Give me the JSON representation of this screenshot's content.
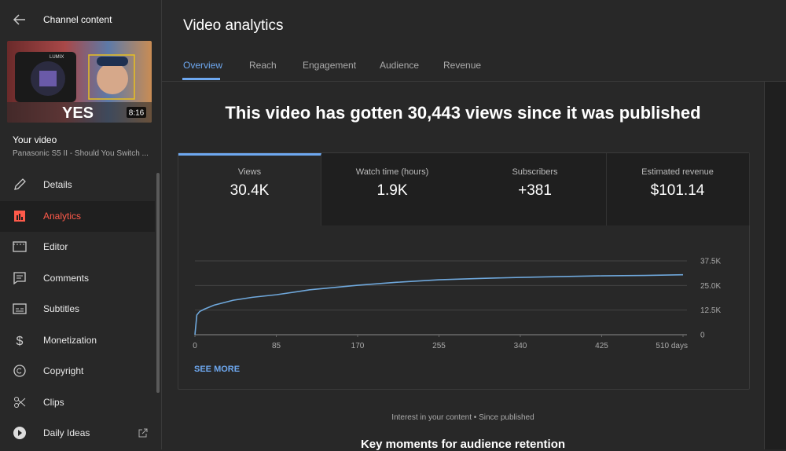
{
  "sidebar": {
    "back_title": "Channel content",
    "thumbnail_brand": "LUMIX",
    "thumbnail_text": "YES",
    "thumbnail_duration": "8:16",
    "your_video": "Your video",
    "video_title": "Panasonic S5 II - Should You Switch ...",
    "nav": [
      "Details",
      "Analytics",
      "Editor",
      "Comments",
      "Subtitles",
      "Monetization",
      "Copyright",
      "Clips",
      "Daily Ideas"
    ]
  },
  "header": {
    "title": "Video analytics",
    "tabs": [
      "Overview",
      "Reach",
      "Engagement",
      "Audience",
      "Revenue"
    ]
  },
  "headline": "This video has gotten 30,443 views since it was published",
  "metrics": [
    {
      "label": "Views",
      "value": "30.4K"
    },
    {
      "label": "Watch time (hours)",
      "value": "1.9K"
    },
    {
      "label": "Subscribers",
      "value": "+381"
    },
    {
      "label": "Estimated revenue",
      "value": "$101.14"
    }
  ],
  "chart_data": {
    "type": "line",
    "color": "#6fa8dc",
    "grid": true,
    "x": [
      0,
      2,
      5,
      10,
      20,
      40,
      60,
      85,
      120,
      170,
      210,
      255,
      300,
      340,
      380,
      425,
      470,
      510
    ],
    "values": [
      0,
      10000,
      11800,
      13000,
      15000,
      17500,
      19000,
      20300,
      22800,
      25100,
      26600,
      27900,
      28600,
      29100,
      29500,
      29900,
      30100,
      30443
    ],
    "xlim": [
      0,
      510
    ],
    "ylim": [
      0,
      37500
    ],
    "xticks": [
      0,
      85,
      170,
      255,
      340,
      425,
      {
        "value": 510,
        "label": "510 days"
      }
    ],
    "yticks": [
      0,
      {
        "value": 12500,
        "label": "12.5K"
      },
      {
        "value": 25000,
        "label": "25.0K"
      },
      {
        "value": 37500,
        "label": "37.5K"
      }
    ]
  },
  "see_more": "SEE MORE",
  "footer_caption": "Interest in your content • Since published",
  "section_title": "Key moments for audience retention"
}
